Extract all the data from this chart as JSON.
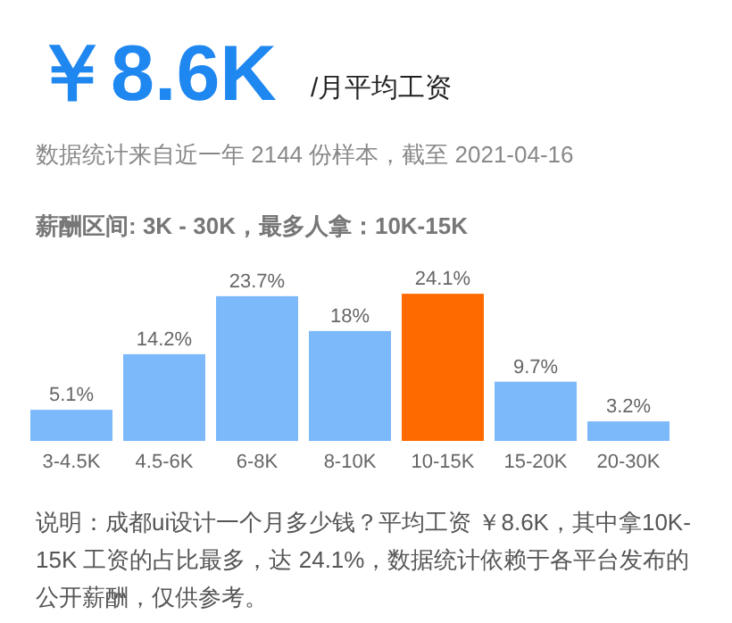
{
  "chart_data": {
    "type": "bar",
    "title": "￥8.6K",
    "subtitle": "/月平均工资",
    "annotations": [
      "数据统计来自近一年 2144 份样本，截至 2021-04-16",
      "薪酬区间: 3K - 30K，最多人拿：10K-15K",
      "说明：成都ui设计一个月多少钱？平均工资 ￥8.6K，其中拿10K-15K 工资的占比最多，达 24.1%，数据统计依赖于各平台发布的公开薪酬，仅供参考。"
    ],
    "categories": [
      "3-4.5K",
      "4.5-6K",
      "6-8K",
      "8-10K",
      "10-15K",
      "15-20K",
      "20-30K"
    ],
    "values": [
      5.1,
      14.2,
      23.7,
      18,
      24.1,
      9.7,
      3.2
    ],
    "value_labels": [
      "5.1%",
      "14.2%",
      "23.7%",
      "18%",
      "24.1%",
      "9.7%",
      "3.2%"
    ],
    "colors": [
      "#7cb9fb",
      "#7cb9fb",
      "#7cb9fb",
      "#7cb9fb",
      "#ff6a00",
      "#7cb9fb",
      "#7cb9fb"
    ]
  }
}
